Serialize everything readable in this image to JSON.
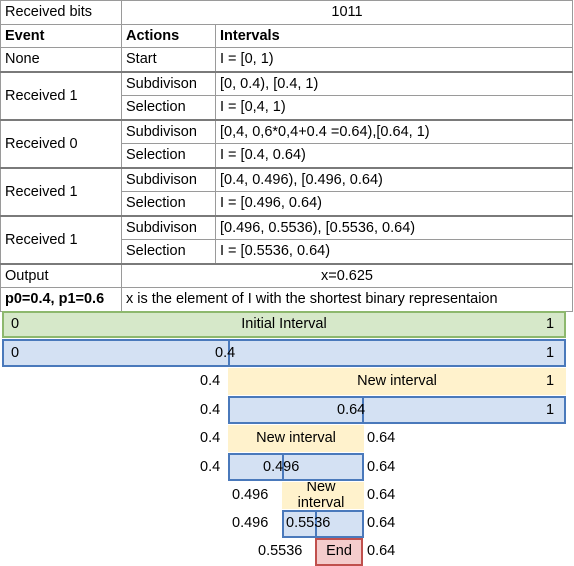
{
  "table": {
    "received_bits_label": "Received bits",
    "received_bits_value": "1011",
    "headers": [
      "Event",
      "Actions",
      "Intervals"
    ],
    "start": {
      "event": "None",
      "action": "Start",
      "interval": "I = [0, 1)"
    },
    "steps": [
      {
        "event": "Received 1",
        "subdivision_label": "Subdivison",
        "subdivision": "[0, 0.4), [0.4, 1)",
        "selection_label": "Selection",
        "selection": "I = [0,4, 1)"
      },
      {
        "event": "Received 0",
        "subdivision_label": "Subdivison",
        "subdivision": "[0,4, 0,6*0,4+0.4 =0.64),[0.64, 1)",
        "selection_label": "Selection",
        "selection": "I = [0.4, 0.64)"
      },
      {
        "event": "Received 1",
        "subdivision_label": "Subdivison",
        "subdivision": "[0.4, 0.496), [0.496, 0.64)",
        "selection_label": "Selection",
        "selection": "I = [0.496, 0.64)"
      },
      {
        "event": "Received 1",
        "subdivision_label": "Subdivison",
        "subdivision": "[0.496, 0.5536), [0.5536, 0.64)",
        "selection_label": "Selection",
        "selection": "I = [0.5536, 0.64)"
      }
    ],
    "output": {
      "label": "Output",
      "value": "x=0.625"
    },
    "footer": {
      "probs": "p0=0.4, p1=0.6",
      "note": "x is the element of I with the shortest binary representaion"
    }
  },
  "diagram": {
    "colors": {
      "green": "#d6e8c9",
      "blue": "#d4e1f3",
      "yellow": "#fff2cc",
      "red": "#f4cccc"
    },
    "initial": {
      "left": "0",
      "label": "Initial Interval",
      "right": "1"
    },
    "row2": {
      "left": "0",
      "mid": "0.4",
      "right": "1"
    },
    "row3": {
      "left": "0.4",
      "label": "New interval",
      "right": "1"
    },
    "row4": {
      "left": "0.4",
      "mid": "0.64",
      "right": "1"
    },
    "row5": {
      "left": "0.4",
      "label": "New interval",
      "right": "0.64"
    },
    "row6": {
      "left": "0.4",
      "mid": "0.496",
      "right": "0.64"
    },
    "row7": {
      "left": "0.496",
      "label": "New interval",
      "right": "0.64"
    },
    "row8": {
      "left": "0.496",
      "mid": "0.5536",
      "right": "0.64"
    },
    "row9": {
      "left": "0.5536",
      "label": "End",
      "right": "0.64"
    }
  }
}
